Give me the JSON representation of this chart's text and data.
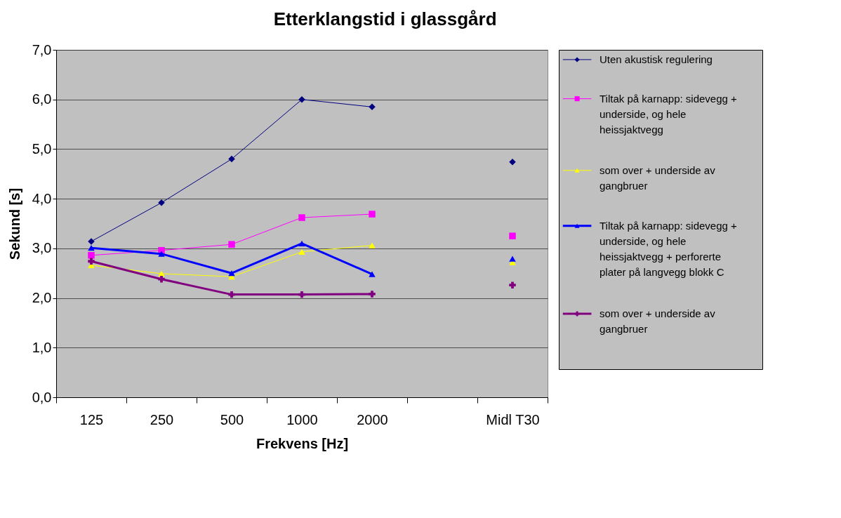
{
  "chart_data": {
    "type": "line",
    "title": "Etterklangstid i glassgård",
    "xlabel": "Frekvens [Hz]",
    "ylabel": "Sekund [s]",
    "categories": [
      "125",
      "250",
      "500",
      "1000",
      "2000",
      null,
      "Midl T30"
    ],
    "series": [
      {
        "name": "Uten akustisk regulering",
        "color": "#000080",
        "marker": "diamond",
        "values": [
          3.14,
          3.92,
          4.8,
          6.0,
          5.85,
          null,
          4.74
        ]
      },
      {
        "name": "Tiltak på karnapp: sidevegg + underside, og hele heissjaktvegg",
        "color": "#ff00ff",
        "marker": "square",
        "values": [
          2.86,
          2.96,
          3.08,
          3.62,
          3.69,
          null,
          3.25
        ]
      },
      {
        "name": "som over + underside av gangbruer",
        "color": "#ffff00",
        "marker": "triangle",
        "values": [
          2.66,
          2.49,
          2.43,
          2.93,
          3.06,
          null,
          2.72
        ]
      },
      {
        "name": "Tiltak på karnapp: sidevegg + underside, og hele heissjaktvegg + perforerte plater på langvegg blokk C",
        "color": "#0000ff",
        "marker": "triangle",
        "values": [
          3.01,
          2.89,
          2.5,
          3.1,
          2.48,
          null,
          2.79
        ]
      },
      {
        "name": "som over + underside av gangbruer",
        "color": "#800080",
        "marker": "cross",
        "values": [
          2.74,
          2.38,
          2.07,
          2.07,
          2.08,
          null,
          2.26
        ]
      }
    ],
    "ylim": [
      0,
      7
    ],
    "yticks": [
      {
        "value": 0,
        "label": "0,0"
      },
      {
        "value": 1,
        "label": "1,0"
      },
      {
        "value": 2,
        "label": "2,0"
      },
      {
        "value": 3,
        "label": "3,0"
      },
      {
        "value": 4,
        "label": "4,0"
      },
      {
        "value": 5,
        "label": "5,0"
      },
      {
        "value": 6,
        "label": "6,0"
      },
      {
        "value": 7,
        "label": "7,0"
      }
    ],
    "grid": "y",
    "legend": "right"
  }
}
